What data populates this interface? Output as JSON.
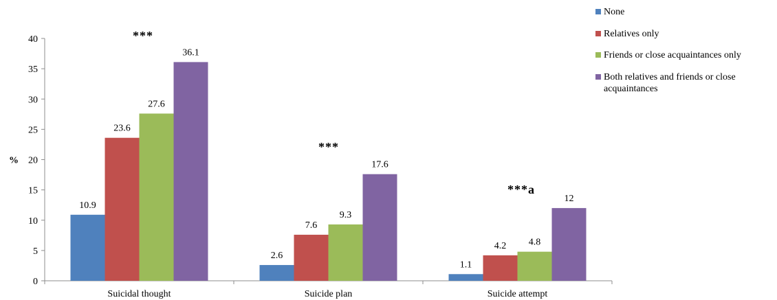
{
  "chart_data": {
    "type": "bar",
    "title": "",
    "xlabel": "",
    "ylabel": "%",
    "ylim": [
      0,
      40
    ],
    "yticks": [
      0,
      5,
      10,
      15,
      20,
      25,
      30,
      35,
      40
    ],
    "grid": false,
    "legend_position": "top-right",
    "categories": [
      "Suicidal thought",
      "Suicide plan",
      "Suicide attempt"
    ],
    "series": [
      {
        "name": "None",
        "color": "#4F81BD",
        "values": [
          10.9,
          2.6,
          1.1
        ],
        "labels": [
          "10.9",
          "2.6",
          "1.1"
        ]
      },
      {
        "name": "Relatives only",
        "color": "#C0504D",
        "values": [
          23.6,
          7.6,
          4.2
        ],
        "labels": [
          "23.6",
          "7.6",
          "4.2"
        ]
      },
      {
        "name": "Friends  or close acquaintances only",
        "color": "#9BBB59",
        "values": [
          27.6,
          9.3,
          4.8
        ],
        "labels": [
          "27.6",
          "9.3",
          "4.8"
        ]
      },
      {
        "name": "Both relatives and friends  or close acquaintances",
        "color": "#8064A2",
        "values": [
          36.1,
          17.6,
          12
        ],
        "labels": [
          "36.1",
          "17.6",
          "12"
        ]
      }
    ],
    "annotations": [
      "***",
      "***",
      "***a"
    ]
  }
}
